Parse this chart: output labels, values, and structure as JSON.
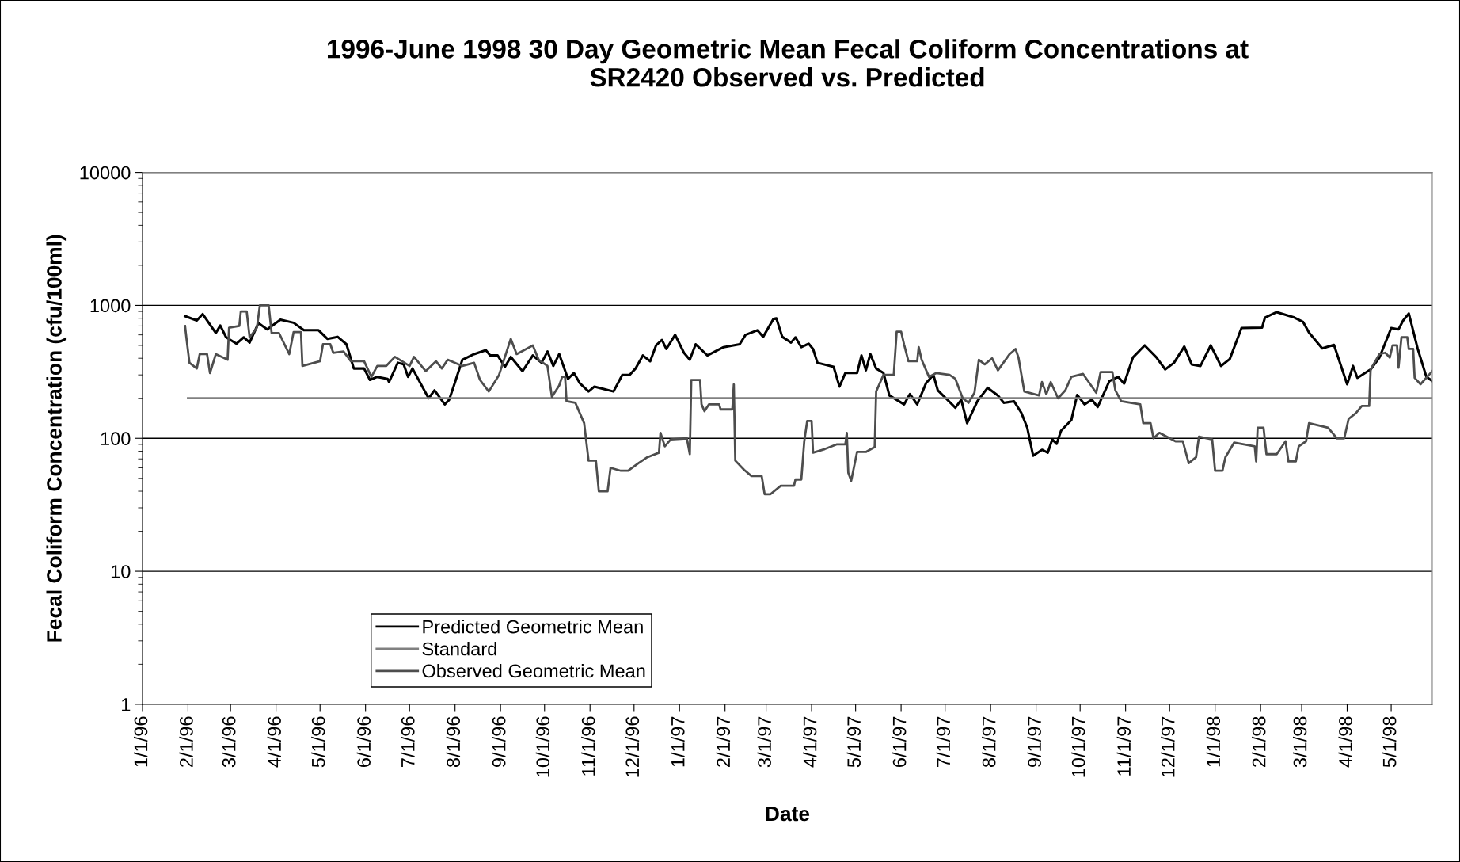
{
  "chart_data": {
    "type": "line",
    "title": "1996-June 1998 30 Day Geometric Mean Fecal Coliform Concentrations at\nSR2420 Observed vs. Predicted",
    "xlabel": "Date",
    "ylabel": "Fecal Coliform Concentration (cfu/100ml)",
    "log": "y",
    "grid": "y",
    "legend": "bottom left",
    "marker": "none",
    "line_style": "solid",
    "xlim": [
      "1996-01-01",
      "1998-05-29"
    ],
    "xticks": [
      {
        "value": "1996-01-01",
        "label": "1/1/96"
      },
      {
        "value": "1996-02-01",
        "label": "2/1/96"
      },
      {
        "value": "1996-03-01",
        "label": "3/1/96"
      },
      {
        "value": "1996-04-01",
        "label": "4/1/96"
      },
      {
        "value": "1996-05-01",
        "label": "5/1/96"
      },
      {
        "value": "1996-06-01",
        "label": "6/1/96"
      },
      {
        "value": "1996-07-01",
        "label": "7/1/96"
      },
      {
        "value": "1996-08-01",
        "label": "8/1/96"
      },
      {
        "value": "1996-09-01",
        "label": "9/1/96"
      },
      {
        "value": "1996-10-01",
        "label": "10/1/96"
      },
      {
        "value": "1996-11-01",
        "label": "11/1/96"
      },
      {
        "value": "1996-12-01",
        "label": "12/1/96"
      },
      {
        "value": "1997-01-01",
        "label": "1/1/97"
      },
      {
        "value": "1997-02-01",
        "label": "2/1/97"
      },
      {
        "value": "1997-03-01",
        "label": "3/1/97"
      },
      {
        "value": "1997-04-01",
        "label": "4/1/97"
      },
      {
        "value": "1997-05-01",
        "label": "5/1/97"
      },
      {
        "value": "1997-06-01",
        "label": "6/1/97"
      },
      {
        "value": "1997-07-01",
        "label": "7/1/97"
      },
      {
        "value": "1997-08-01",
        "label": "8/1/97"
      },
      {
        "value": "1997-09-01",
        "label": "9/1/97"
      },
      {
        "value": "1997-10-01",
        "label": "10/1/97"
      },
      {
        "value": "1997-11-01",
        "label": "11/1/97"
      },
      {
        "value": "1997-12-01",
        "label": "12/1/97"
      },
      {
        "value": "1998-01-01",
        "label": "1/1/98"
      },
      {
        "value": "1998-02-01",
        "label": "2/1/98"
      },
      {
        "value": "1998-03-01",
        "label": "3/1/98"
      },
      {
        "value": "1998-04-01",
        "label": "4/1/98"
      },
      {
        "value": "1998-05-01",
        "label": "5/1/98"
      }
    ],
    "ylim": [
      1,
      10000
    ],
    "yticks": [
      1,
      10,
      100,
      1000,
      10000
    ],
    "series": [
      {
        "name": "Predicted Geometric Mean",
        "color": "#000000",
        "x": [
          "1996-01-30",
          "1996-02-07",
          "1996-02-11",
          "1996-02-20",
          "1996-02-23",
          "1996-02-27",
          "1996-03-05",
          "1996-03-10",
          "1996-03-14",
          "1996-03-20",
          "1996-03-26",
          "1996-04-04",
          "1996-04-13",
          "1996-04-20",
          "1996-04-30",
          "1996-05-06",
          "1996-05-13",
          "1996-05-19",
          "1996-05-24",
          "1996-05-31",
          "1996-06-04",
          "1996-06-09",
          "1996-06-16",
          "1996-06-17",
          "1996-06-23",
          "1996-06-27",
          "1996-06-30",
          "1996-07-03",
          "1996-07-14",
          "1996-07-18",
          "1996-07-25",
          "1996-07-28",
          "1996-07-31",
          "1996-08-06",
          "1996-08-14",
          "1996-08-22",
          "1996-08-25",
          "1996-08-30",
          "1996-09-04",
          "1996-09-08",
          "1996-09-16",
          "1996-09-23",
          "1996-09-29",
          "1996-10-03",
          "1996-10-07",
          "1996-10-11",
          "1996-10-17",
          "1996-10-21",
          "1996-10-25",
          "1996-10-31",
          "1996-11-04",
          "1996-11-17",
          "1996-11-23",
          "1996-11-28",
          "1996-12-02",
          "1996-12-07",
          "1996-12-12",
          "1996-12-16",
          "1996-12-20",
          "1996-12-23",
          "1996-12-29",
          "1997-01-04",
          "1997-01-08",
          "1997-01-12",
          "1997-01-20",
          "1997-01-31",
          "1997-02-11",
          "1997-02-15",
          "1997-02-23",
          "1997-02-27",
          "1997-03-06",
          "1997-03-08",
          "1997-03-12",
          "1997-03-18",
          "1997-03-21",
          "1997-03-25",
          "1997-03-30",
          "1997-04-02",
          "1997-04-05",
          "1997-04-16",
          "1997-04-20",
          "1997-04-24",
          "1997-05-02",
          "1997-05-05",
          "1997-05-08",
          "1997-05-11",
          "1997-05-15",
          "1997-05-20",
          "1997-05-24",
          "1997-06-03",
          "1997-06-07",
          "1997-06-12",
          "1997-06-18",
          "1997-06-23",
          "1997-06-26",
          "1997-07-08",
          "1997-07-12",
          "1997-07-16",
          "1997-07-23",
          "1997-07-30",
          "1997-08-06",
          "1997-08-10",
          "1997-08-17",
          "1997-08-22",
          "1997-08-26",
          "1997-08-30",
          "1997-09-05",
          "1997-09-09",
          "1997-09-12",
          "1997-09-15",
          "1997-09-18",
          "1997-09-25",
          "1997-09-29",
          "1997-10-04",
          "1997-10-09",
          "1997-10-13",
          "1997-10-21",
          "1997-10-27",
          "1997-10-31",
          "1997-11-06",
          "1997-11-14",
          "1997-11-22",
          "1997-11-28",
          "1997-12-04",
          "1997-12-11",
          "1997-12-16",
          "1997-12-22",
          "1997-12-29",
          "1998-01-05",
          "1998-01-11",
          "1998-01-19",
          "1998-02-02",
          "1998-02-04",
          "1998-02-12",
          "1998-02-24",
          "1998-03-02",
          "1998-03-06",
          "1998-03-15",
          "1998-03-23",
          "1998-04-01",
          "1998-04-05",
          "1998-04-08",
          "1998-04-17",
          "1998-04-23",
          "1998-05-01",
          "1998-05-06",
          "1998-05-09",
          "1998-05-13",
          "1998-05-19",
          "1998-05-25",
          "1998-05-29"
        ],
        "values": [
          830,
          770,
          860,
          620,
          705,
          575,
          515,
          575,
          525,
          735,
          660,
          780,
          740,
          650,
          650,
          560,
          580,
          510,
          335,
          335,
          275,
          290,
          280,
          265,
          370,
          360,
          290,
          335,
          200,
          230,
          180,
          195,
          245,
          390,
          430,
          460,
          420,
          420,
          345,
          410,
          320,
          420,
          370,
          450,
          350,
          430,
          280,
          310,
          260,
          225,
          245,
          225,
          300,
          300,
          335,
          420,
          380,
          500,
          550,
          470,
          600,
          440,
          390,
          510,
          420,
          485,
          510,
          600,
          650,
          580,
          790,
          800,
          580,
          525,
          575,
          485,
          515,
          470,
          370,
          345,
          245,
          310,
          310,
          420,
          325,
          430,
          335,
          310,
          210,
          180,
          215,
          180,
          260,
          300,
          230,
          170,
          195,
          130,
          190,
          240,
          210,
          185,
          190,
          155,
          120,
          74,
          82,
          78,
          98,
          91,
          114,
          137,
          212,
          180,
          195,
          172,
          270,
          290,
          258,
          406,
          500,
          406,
          330,
          370,
          490,
          360,
          350,
          500,
          350,
          395,
          675,
          680,
          810,
          890,
          810,
          750,
          625,
          475,
          505,
          255,
          350,
          285,
          330,
          405,
          675,
          660,
          765,
          870,
          475,
          290,
          270
        ]
      },
      {
        "name": "Standard",
        "color": "#808080",
        "x": [
          "1996-02-01",
          "1998-05-29"
        ],
        "values": [
          200,
          200
        ]
      },
      {
        "name": "Observed Geometric Mean",
        "color": "#4d4d4d",
        "x": [
          "1996-01-30",
          "1996-01-31",
          "1996-02-02",
          "1996-02-07",
          "1996-02-09",
          "1996-02-14",
          "1996-02-16",
          "1996-02-20",
          "1996-02-28",
          "1996-02-29",
          "1996-03-07",
          "1996-03-08",
          "1996-03-12",
          "1996-03-14",
          "1996-03-19",
          "1996-03-21",
          "1996-03-27",
          "1996-03-29",
          "1996-04-03",
          "1996-04-10",
          "1996-04-13",
          "1996-04-18",
          "1996-04-19",
          "1996-05-01",
          "1996-05-03",
          "1996-05-08",
          "1996-05-10",
          "1996-05-17",
          "1996-05-22",
          "1996-05-31",
          "1996-06-05",
          "1996-06-09",
          "1996-06-15",
          "1996-06-21",
          "1996-07-01",
          "1996-07-04",
          "1996-07-12",
          "1996-07-19",
          "1996-07-23",
          "1996-07-27",
          "1996-08-06",
          "1996-08-14",
          "1996-08-18",
          "1996-08-24",
          "1996-08-31",
          "1996-09-08",
          "1996-09-12",
          "1996-09-23",
          "1996-09-27",
          "1996-10-03",
          "1996-10-06",
          "1996-10-11",
          "1996-10-13",
          "1996-10-15",
          "1996-10-16",
          "1996-10-22",
          "1996-10-28",
          "1996-10-31",
          "1996-11-05",
          "1996-11-07",
          "1996-11-13",
          "1996-11-15",
          "1996-11-22",
          "1996-11-27",
          "1996-12-04",
          "1996-12-10",
          "1996-12-18",
          "1996-12-19",
          "1996-12-22",
          "1996-12-26",
          "1997-01-06",
          "1997-01-08",
          "1997-01-09",
          "1997-01-15",
          "1997-01-16",
          "1997-01-18",
          "1997-01-21",
          "1997-01-28",
          "1997-01-29",
          "1997-02-06",
          "1997-02-07",
          "1997-02-08",
          "1997-02-14",
          "1997-02-19",
          "1997-02-26",
          "1997-02-28",
          "1997-03-04",
          "1997-03-11",
          "1997-03-20",
          "1997-03-21",
          "1997-03-25",
          "1997-03-27",
          "1997-03-29",
          "1997-04-01",
          "1997-04-02",
          "1997-04-10",
          "1997-04-18",
          "1997-04-24",
          "1997-04-25",
          "1997-04-26",
          "1997-04-28",
          "1997-05-02",
          "1997-05-08",
          "1997-05-14",
          "1997-05-15",
          "1997-05-20",
          "1997-05-27",
          "1997-05-29",
          "1997-06-01",
          "1997-06-03",
          "1997-06-06",
          "1997-06-12",
          "1997-06-13",
          "1997-06-15",
          "1997-06-20",
          "1997-06-25",
          "1997-07-04",
          "1997-07-08",
          "1997-07-13",
          "1997-07-17",
          "1997-07-21",
          "1997-07-24",
          "1997-07-28",
          "1997-08-02",
          "1997-08-06",
          "1997-08-14",
          "1997-08-18",
          "1997-08-20",
          "1997-08-24",
          "1997-09-03",
          "1997-09-05",
          "1997-09-08",
          "1997-09-11",
          "1997-09-16",
          "1997-09-21",
          "1997-09-25",
          "1997-10-03",
          "1997-10-12",
          "1997-10-15",
          "1997-10-23",
          "1997-10-25",
          "1997-10-29",
          "1997-11-11",
          "1997-11-13",
          "1997-11-18",
          "1997-11-20",
          "1997-11-24",
          "1997-12-05",
          "1997-12-10",
          "1997-12-14",
          "1997-12-19",
          "1997-12-21",
          "1997-12-30",
          "1998-01-01",
          "1998-01-06",
          "1998-01-08",
          "1998-01-14",
          "1998-01-28",
          "1998-01-29",
          "1998-01-30",
          "1998-02-03",
          "1998-02-05",
          "1998-02-12",
          "1998-02-18",
          "1998-02-20",
          "1998-02-25",
          "1998-02-27",
          "1998-03-04",
          "1998-03-06",
          "1998-03-19",
          "1998-03-25",
          "1998-03-30",
          "1998-04-02",
          "1998-04-07",
          "1998-04-11",
          "1998-04-16",
          "1998-04-17",
          "1998-04-23",
          "1998-04-27",
          "1998-04-30",
          "1998-05-02",
          "1998-05-05",
          "1998-05-06",
          "1998-05-08",
          "1998-05-12",
          "1998-05-13",
          "1998-05-16",
          "1998-05-17",
          "1998-05-21",
          "1998-05-29"
        ],
        "values": [
          700,
          560,
          370,
          335,
          430,
          430,
          310,
          430,
          390,
          680,
          700,
          900,
          900,
          575,
          680,
          1000,
          1000,
          620,
          620,
          430,
          630,
          630,
          350,
          380,
          510,
          510,
          440,
          450,
          380,
          380,
          290,
          350,
          350,
          410,
          350,
          410,
          320,
          380,
          335,
          390,
          350,
          370,
          275,
          225,
          300,
          560,
          430,
          500,
          390,
          350,
          205,
          250,
          290,
          290,
          190,
          185,
          130,
          68,
          68,
          40,
          40,
          60,
          57,
          57,
          65,
          72,
          78,
          110,
          87,
          98,
          100,
          76,
          275,
          275,
          180,
          160,
          180,
          180,
          165,
          165,
          255,
          68,
          58,
          52,
          52,
          38,
          38,
          44,
          44,
          49,
          49,
          95,
          135,
          135,
          78,
          83,
          90,
          90,
          110,
          55,
          48,
          79,
          79,
          86,
          225,
          300,
          300,
          635,
          635,
          510,
          380,
          380,
          485,
          390,
          290,
          310,
          300,
          280,
          200,
          185,
          220,
          390,
          360,
          400,
          325,
          430,
          470,
          405,
          225,
          210,
          265,
          215,
          265,
          200,
          230,
          290,
          305,
          220,
          315,
          315,
          230,
          190,
          180,
          130,
          130,
          100,
          110,
          95,
          95,
          65,
          72,
          103,
          98,
          57,
          57,
          72,
          93,
          87,
          67,
          120,
          120,
          76,
          76,
          95,
          67,
          67,
          87,
          95,
          130,
          120,
          100,
          100,
          140,
          155,
          175,
          175,
          330,
          430,
          440,
          405,
          500,
          500,
          340,
          575,
          575,
          470,
          470,
          285,
          255,
          320
        ]
      }
    ]
  }
}
